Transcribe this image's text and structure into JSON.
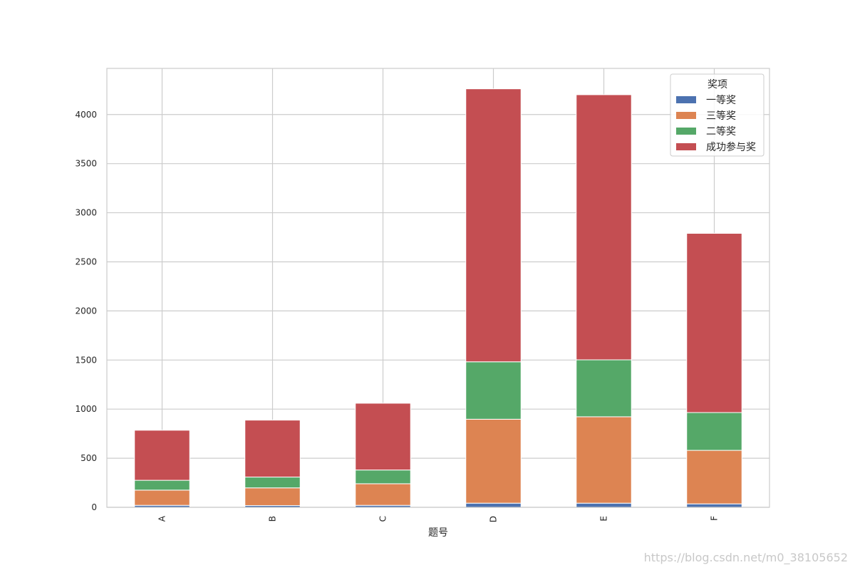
{
  "chart_data": {
    "type": "bar",
    "stacked": true,
    "categories": [
      "A",
      "B",
      "C",
      "D",
      "E",
      "F"
    ],
    "xlabel": "题号",
    "ylabel": "",
    "ylim": [
      0,
      4470
    ],
    "yticks": [
      0,
      500,
      1000,
      1500,
      2000,
      2500,
      3000,
      3500,
      4000
    ],
    "grid": true,
    "legend": {
      "title": "奖项",
      "position": "top-right"
    },
    "series": [
      {
        "name": "一等奖",
        "color": "#4c72b0",
        "values": [
          20,
          18,
          20,
          42,
          42,
          35
        ]
      },
      {
        "name": "三等奖",
        "color": "#dd8452",
        "values": [
          155,
          180,
          220,
          855,
          880,
          545
        ]
      },
      {
        "name": "二等奖",
        "color": "#55a868",
        "values": [
          100,
          110,
          140,
          585,
          580,
          385
        ]
      },
      {
        "name": "成功参与奖",
        "color": "#c44e52",
        "values": [
          510,
          580,
          680,
          2780,
          2700,
          1825
        ]
      }
    ]
  },
  "watermark": "https://blog.csdn.net/m0_38105652"
}
